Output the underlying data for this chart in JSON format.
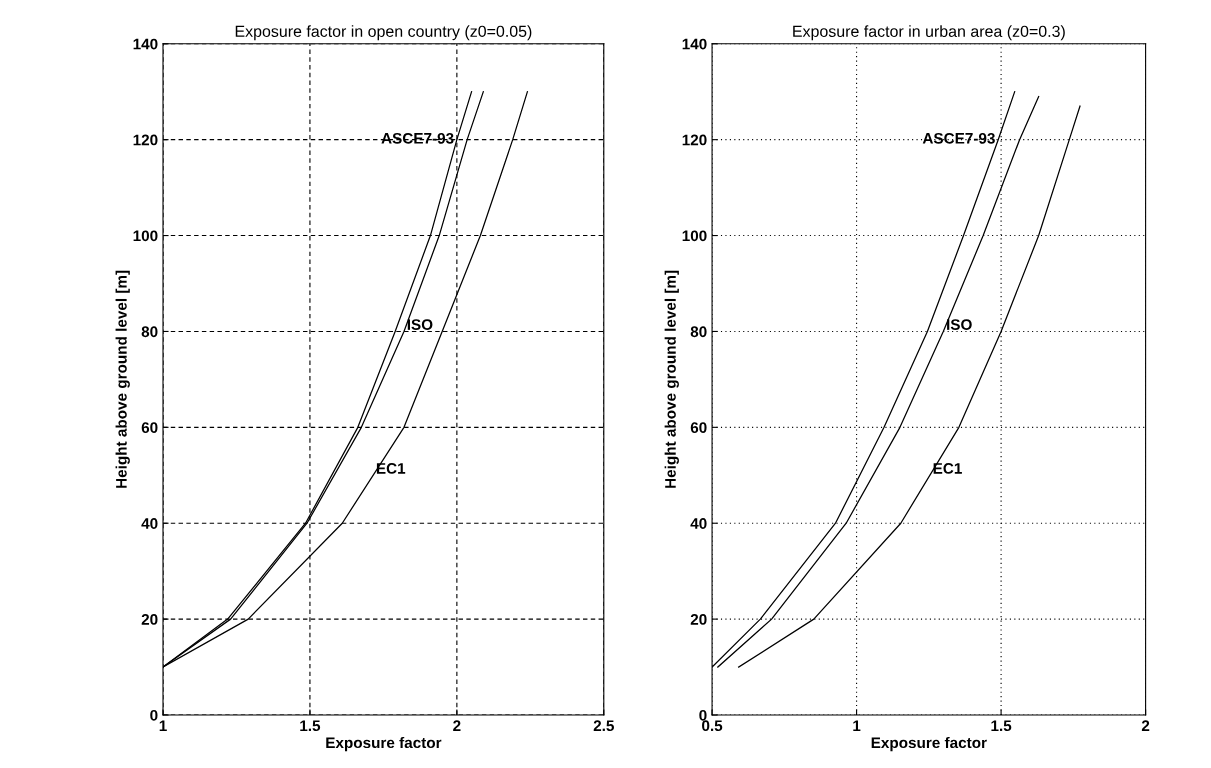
{
  "chart_data": [
    {
      "type": "line",
      "title": "Exposure factor in open country (z0=0.05)",
      "xlabel": "Exposure factor",
      "ylabel": "Height above ground level [m]",
      "xlim": [
        1,
        2.5
      ],
      "xticks": [
        1,
        1.5,
        2,
        2.5
      ],
      "ylim": [
        0,
        140
      ],
      "yticks": [
        0,
        20,
        40,
        60,
        80,
        100,
        120,
        140
      ],
      "grid": true,
      "line_style": "solid",
      "series": [
        {
          "name": "ASCE7-93",
          "color": "#000000",
          "x": [
            1,
            1.22,
            1.485,
            1.663,
            1.79,
            1.91,
            2.0,
            2.05
          ],
          "values": [
            10,
            20,
            40,
            60,
            80,
            100,
            120,
            130
          ]
        },
        {
          "name": "ISO",
          "color": "#000000",
          "x": [
            1,
            1.23,
            1.49,
            1.675,
            1.82,
            1.94,
            2.035,
            2.09
          ],
          "values": [
            10,
            20,
            40,
            60,
            80,
            100,
            120,
            130
          ]
        },
        {
          "name": "EC1",
          "color": "#000000",
          "x": [
            1,
            1.29,
            1.61,
            1.82,
            1.95,
            2.08,
            2.19,
            2.24
          ],
          "values": [
            10,
            20,
            40,
            60,
            80,
            100,
            120,
            130
          ]
        }
      ]
    },
    {
      "type": "line",
      "title": "Exposure factor in urban area (z0=0.3)",
      "xlabel": "Exposure factor",
      "ylabel": "Height above ground level [m]",
      "xlim": [
        0.5,
        2
      ],
      "xticks": [
        0.5,
        1,
        1.5,
        2
      ],
      "ylim": [
        0,
        140
      ],
      "yticks": [
        0,
        20,
        40,
        60,
        80,
        100,
        120,
        140
      ],
      "grid": true,
      "line_style": "solid",
      "series": [
        {
          "name": "ASCE7-93",
          "color": "#000000",
          "x": [
            0.5,
            0.667,
            0.927,
            1.095,
            1.245,
            1.37,
            1.49,
            1.547
          ],
          "values": [
            10,
            20,
            40,
            60,
            80,
            100,
            120,
            130
          ]
        },
        {
          "name": "ISO",
          "color": "#000000",
          "x": [
            0.52,
            0.706,
            0.964,
            1.15,
            1.3,
            1.438,
            1.564,
            1.63
          ],
          "values": [
            10,
            20,
            40,
            60,
            80,
            100,
            120,
            129
          ]
        },
        {
          "name": "EC1",
          "color": "#000000",
          "x": [
            0.592,
            0.852,
            1.153,
            1.354,
            1.5,
            1.63,
            1.736,
            1.773
          ],
          "values": [
            10,
            20,
            40,
            60,
            80,
            100,
            120,
            127
          ]
        }
      ]
    }
  ]
}
